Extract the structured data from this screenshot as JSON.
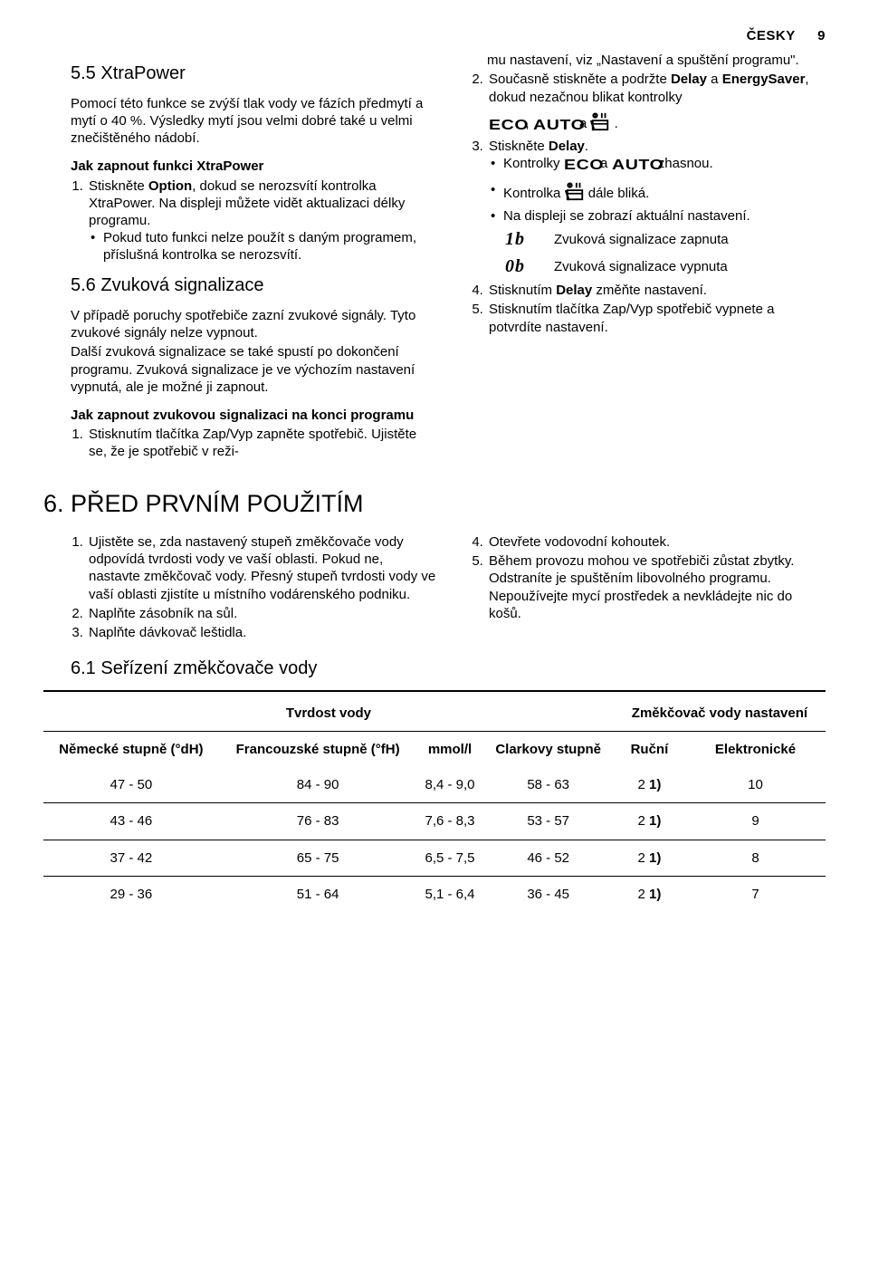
{
  "header": {
    "lang": "ČESKY",
    "page": "9"
  },
  "left": {
    "s55_title": "5.5 XtraPower",
    "s55_p1": "Pomocí této funkce se zvýší tlak vody ve fázích předmytí a mytí o 40 %. Výsledky mytí jsou velmi dobré také u velmi znečištěného nádobí.",
    "s55_h4": "Jak zapnout funkci XtraPower",
    "s55_li1a": "Stiskněte ",
    "s55_li1b": "Option",
    "s55_li1c": ", dokud se nerozsvítí kontrolka XtraPower. Na displeji můžete vidět aktualizaci délky programu.",
    "s55_b1": "Pokud tuto funkci nelze použít s daným programem, příslušná kontrolka se nerozsvítí.",
    "s56_title": "5.6 Zvuková signalizace",
    "s56_p1": "V případě poruchy spotřebiče zazní zvukové signály. Tyto zvukové signály nelze vypnout.",
    "s56_p2": "Další zvuková signalizace se také spustí po dokončení programu. Zvuková signalizace je ve výchozím nastavení vypnutá, ale je možné ji zapnout.",
    "s56_h4": "Jak zapnout zvukovou signalizaci na konci programu",
    "s56_li1": "Stisknutím tlačítka Zap/Vyp zapněte spotřebič. Ujistěte se, že je spotřebič v reži-"
  },
  "right": {
    "p0": "mu nastavení, viz „Nastavení a spuštění programu\".",
    "li2a": "Současně stiskněte a podržte ",
    "li2b": "Delay",
    "li2c": " a ",
    "li2d": "EnergySaver",
    "li2e": ", dokud nezačnou blikat kontrolky",
    "eco": "ECO",
    "auto": "AUTO",
    "li2_join1": " , ",
    "li2_join2": " a ",
    "li2_end": " .",
    "li3a": "Stiskněte ",
    "li3b": "Delay",
    "li3c": ".",
    "b1a": "Kontrolky ",
    "b1b": " a ",
    "b1c": " zhasnou.",
    "b2a": "Kontrolka ",
    "b2b": " dále bliká.",
    "b3": "Na displeji se zobrazí aktuální nastavení.",
    "sig1_code": "1b",
    "sig1_txt": "Zvuková signalizace zapnuta",
    "sig2_code": "0b",
    "sig2_txt": "Zvuková signalizace vypnuta",
    "li4a": "Stisknutím ",
    "li4b": "Delay",
    "li4c": " změňte nastavení.",
    "li5": "Stisknutím tlačítka Zap/Vyp spotřebič vypnete a potvrdíte nastavení."
  },
  "s6": {
    "title": "6.  PŘED PRVNÍM POUŽITÍM",
    "l1": "Ujistěte se, zda nastavený stupeň změkčovače vody odpovídá tvrdosti vody ve vaší oblasti. Pokud ne, nastavte změkčovač vody. Přesný stupeň tvrdosti vody ve vaší oblasti zjistíte u místního vodárenského podniku.",
    "l2": "Naplňte zásobník na sůl.",
    "l3": "Naplňte dávkovač leštidla.",
    "r4": "Otevřete vodovodní kohoutek.",
    "r5": "Během provozu mohou ve spotřebiči zůstat zbytky. Odstraníte je spuštěním libovolného programu. Nepoužívejte mycí prostředek a nevkládejte nic do košů.",
    "s61_title": "6.1 Seřízení změkčovače vody"
  },
  "table": {
    "group1": "Tvrdost vody",
    "group2": "Změkčovač vody nastavení",
    "c1": "Německé stupně (°dH)",
    "c2": "Francouzské stupně (°fH)",
    "c3": "mmol/l",
    "c4": "Clarkovy stupně",
    "c5": "Ruční",
    "c6": "Elektronické",
    "rows": [
      {
        "c1": "47 - 50",
        "c2": "84 - 90",
        "c3": "8,4 - 9,0",
        "c4": "58 - 63",
        "c5": "2",
        "c5s": "1)",
        "c6": "10"
      },
      {
        "c1": "43 - 46",
        "c2": "76 - 83",
        "c3": "7,6 - 8,3",
        "c4": "53 - 57",
        "c5": "2",
        "c5s": "1)",
        "c6": "9"
      },
      {
        "c1": "37 - 42",
        "c2": "65 - 75",
        "c3": "6,5 - 7,5",
        "c4": "46 - 52",
        "c5": "2",
        "c5s": "1)",
        "c6": "8"
      },
      {
        "c1": "29 - 36",
        "c2": "51 - 64",
        "c3": "5,1 - 6,4",
        "c4": "36 - 45",
        "c5": "2",
        "c5s": "1)",
        "c6": "7"
      }
    ]
  }
}
